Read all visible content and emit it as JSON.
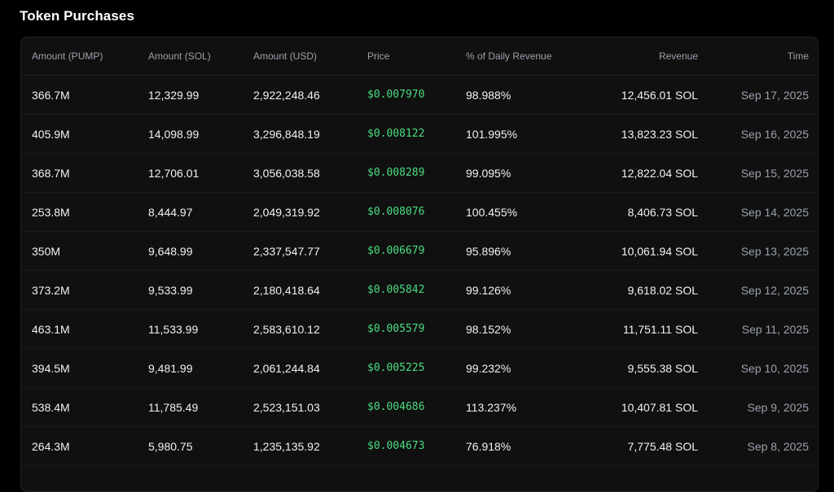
{
  "page": {
    "title": "Token Purchases"
  },
  "colors": {
    "price_green": "#4ade80",
    "muted_text": "#9aa1ad",
    "card_bg": "#101010"
  },
  "table": {
    "headers": [
      "Amount (PUMP)",
      "Amount (SOL)",
      "Amount (USD)",
      "Price",
      "% of Daily Revenue",
      "Revenue",
      "Time"
    ],
    "rows": [
      [
        "366.7M",
        "12,329.99",
        "2,922,248.46",
        "$0.007970",
        "98.988%",
        "12,456.01 SOL",
        "Sep 17, 2025"
      ],
      [
        "405.9M",
        "14,098.99",
        "3,296,848.19",
        "$0.008122",
        "101.995%",
        "13,823.23 SOL",
        "Sep 16, 2025"
      ],
      [
        "368.7M",
        "12,706.01",
        "3,056,038.58",
        "$0.008289",
        "99.095%",
        "12,822.04 SOL",
        "Sep 15, 2025"
      ],
      [
        "253.8M",
        "8,444.97",
        "2,049,319.92",
        "$0.008076",
        "100.455%",
        "8,406.73 SOL",
        "Sep 14, 2025"
      ],
      [
        "350M",
        "9,648.99",
        "2,337,547.77",
        "$0.006679",
        "95.896%",
        "10,061.94 SOL",
        "Sep 13, 2025"
      ],
      [
        "373.2M",
        "9,533.99",
        "2,180,418.64",
        "$0.005842",
        "99.126%",
        "9,618.02 SOL",
        "Sep 12, 2025"
      ],
      [
        "463.1M",
        "11,533.99",
        "2,583,610.12",
        "$0.005579",
        "98.152%",
        "11,751.11 SOL",
        "Sep 11, 2025"
      ],
      [
        "394.5M",
        "9,481.99",
        "2,061,244.84",
        "$0.005225",
        "99.232%",
        "9,555.38 SOL",
        "Sep 10, 2025"
      ],
      [
        "538.4M",
        "11,785.49",
        "2,523,151.03",
        "$0.004686",
        "113.237%",
        "10,407.81 SOL",
        "Sep 9, 2025"
      ],
      [
        "264.3M",
        "5,980.75",
        "1,235,135.92",
        "$0.004673",
        "76.918%",
        "7,775.48 SOL",
        "Sep 8, 2025"
      ]
    ]
  }
}
